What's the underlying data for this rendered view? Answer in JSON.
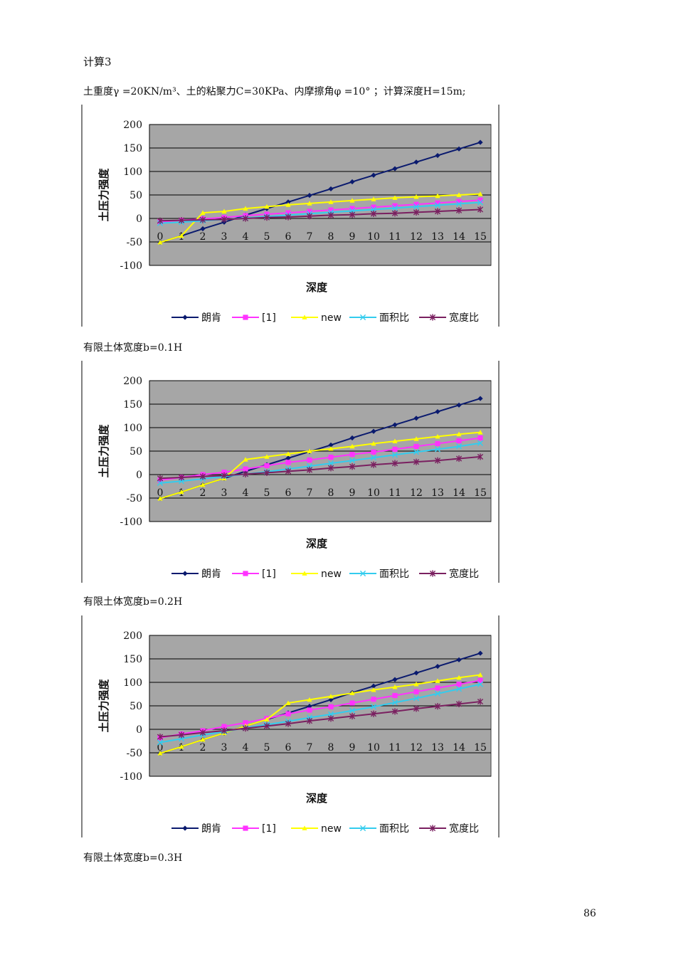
{
  "page": {
    "heading": "计算3",
    "params": "土重度γ =20KN/m³、土的粘聚力C=30KPa、内摩擦角φ =10° ；计算深度H=15m;",
    "page_number": "86"
  },
  "colors": {
    "plot_bg": "#a6a6a6",
    "gridline": "#000000",
    "朗肯": "#0a1a6e",
    "[1]": "#ff33ff",
    "new": "#ffff00",
    "面积比": "#33ccee",
    "宽度比": "#7a2060"
  },
  "chart_data": [
    {
      "type": "line",
      "caption": "有限土体宽度b=0.1H",
      "xlabel": "深度",
      "ylabel": "土压力强度",
      "ylim": [
        -100,
        200
      ],
      "yticks": [
        200,
        150,
        100,
        50,
        0,
        -50,
        -100
      ],
      "grid": true,
      "legend": "bottom",
      "categories": [
        0,
        1,
        2,
        3,
        4,
        5,
        6,
        7,
        8,
        9,
        10,
        11,
        12,
        13,
        14,
        15
      ],
      "series": [
        {
          "name": "朗肯",
          "marker": "diamond",
          "values": [
            -51,
            -37,
            -22,
            -8,
            7,
            21,
            35,
            49,
            63,
            78,
            92,
            106,
            120,
            134,
            148,
            162
          ]
        },
        {
          "name": "[1]",
          "marker": "square",
          "values": [
            -7,
            -4,
            -1,
            2,
            6,
            9,
            12,
            15,
            18,
            21,
            24,
            27,
            30,
            33,
            36,
            39
          ]
        },
        {
          "name": "new",
          "marker": "triangle",
          "values": [
            -51,
            -37,
            12,
            15,
            21,
            25,
            29,
            32,
            35,
            38,
            41,
            44,
            46,
            48,
            50,
            52
          ]
        },
        {
          "name": "面积比",
          "marker": "x",
          "values": [
            -10,
            -8,
            -5,
            -2,
            1,
            4,
            7,
            10,
            13,
            16,
            19,
            22,
            25,
            28,
            31,
            34
          ]
        },
        {
          "name": "宽度比",
          "marker": "star",
          "values": [
            -5,
            -4,
            -3,
            -2,
            0,
            2,
            3,
            5,
            7,
            8,
            10,
            11,
            13,
            15,
            17,
            19
          ]
        }
      ]
    },
    {
      "type": "line",
      "caption": "有限土体宽度b=0.2H",
      "xlabel": "深度",
      "ylabel": "土压力强度",
      "ylim": [
        -100,
        200
      ],
      "yticks": [
        200,
        150,
        100,
        50,
        0,
        -50,
        -100
      ],
      "grid": true,
      "legend": "bottom",
      "categories": [
        0,
        1,
        2,
        3,
        4,
        5,
        6,
        7,
        8,
        9,
        10,
        11,
        12,
        13,
        14,
        15
      ],
      "series": [
        {
          "name": "朗肯",
          "marker": "diamond",
          "values": [
            -51,
            -37,
            -22,
            -8,
            7,
            21,
            35,
            49,
            63,
            78,
            92,
            106,
            120,
            134,
            148,
            162
          ]
        },
        {
          "name": "[1]",
          "marker": "square",
          "values": [
            -12,
            -6,
            0,
            5,
            12,
            19,
            26,
            31,
            37,
            43,
            48,
            54,
            60,
            66,
            72,
            78
          ]
        },
        {
          "name": "new",
          "marker": "triangle",
          "values": [
            -51,
            -37,
            -22,
            -8,
            32,
            38,
            44,
            50,
            55,
            60,
            66,
            71,
            76,
            81,
            86,
            90
          ]
        },
        {
          "name": "面积比",
          "marker": "x",
          "values": [
            -18,
            -14,
            -9,
            -4,
            1,
            6,
            12,
            18,
            24,
            30,
            36,
            42,
            48,
            54,
            60,
            67
          ]
        },
        {
          "name": "宽度比",
          "marker": "star",
          "values": [
            -8,
            -6,
            -4,
            -2,
            1,
            4,
            7,
            10,
            14,
            17,
            21,
            24,
            27,
            30,
            34,
            38
          ]
        }
      ]
    },
    {
      "type": "line",
      "caption": "有限土体宽度b=0.3H",
      "xlabel": "深度",
      "ylabel": "土压力强度",
      "ylim": [
        -100,
        200
      ],
      "yticks": [
        200,
        150,
        100,
        50,
        0,
        -50,
        -100
      ],
      "grid": true,
      "legend": "bottom",
      "categories": [
        0,
        1,
        2,
        3,
        4,
        5,
        6,
        7,
        8,
        9,
        10,
        11,
        12,
        13,
        14,
        15
      ],
      "series": [
        {
          "name": "朗肯",
          "marker": "diamond",
          "values": [
            -51,
            -37,
            -22,
            -8,
            7,
            21,
            35,
            49,
            63,
            78,
            92,
            106,
            120,
            134,
            148,
            162
          ]
        },
        {
          "name": "[1]",
          "marker": "square",
          "values": [
            -18,
            -10,
            -3,
            6,
            14,
            23,
            33,
            41,
            48,
            56,
            64,
            72,
            80,
            88,
            96,
            104
          ]
        },
        {
          "name": "new",
          "marker": "triangle",
          "values": [
            -51,
            -37,
            -22,
            -8,
            7,
            21,
            56,
            63,
            70,
            77,
            84,
            90,
            96,
            103,
            110,
            116
          ]
        },
        {
          "name": "面积比",
          "marker": "x",
          "values": [
            -28,
            -20,
            -12,
            -5,
            3,
            10,
            17,
            25,
            32,
            40,
            48,
            57,
            66,
            76,
            86,
            96
          ]
        },
        {
          "name": "宽度比",
          "marker": "star",
          "values": [
            -16,
            -12,
            -7,
            -3,
            2,
            7,
            12,
            18,
            23,
            28,
            33,
            38,
            44,
            49,
            54,
            59
          ]
        }
      ]
    }
  ]
}
